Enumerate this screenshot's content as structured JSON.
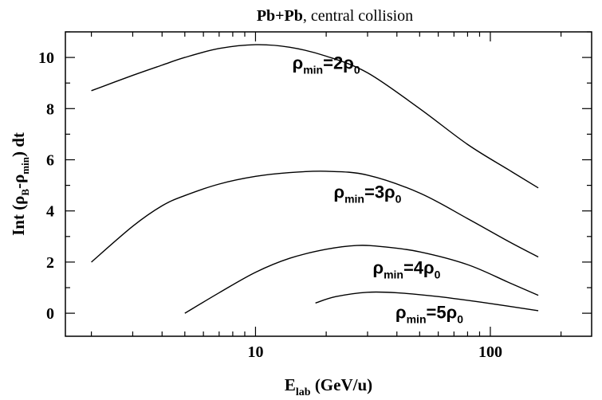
{
  "chart_data": {
    "type": "line",
    "title_bold": "Pb+Pb",
    "title_rest": ", central collision",
    "xlabel": {
      "main": "E",
      "sub": "lab",
      "rest": " (GeV/u)"
    },
    "ylabel": {
      "p1": "Int (ρ",
      "s1": "B",
      "p2": "-ρ",
      "s2": "min",
      "p3": ") dt"
    },
    "x_scale": "log",
    "xlim": [
      1.55,
      270
    ],
    "ylim": [
      -0.9,
      11.0
    ],
    "x_ticks": [
      {
        "value": 10,
        "label": "10"
      },
      {
        "value": 100,
        "label": "100"
      }
    ],
    "y_ticks": [
      {
        "value": 0,
        "label": "0"
      },
      {
        "value": 2,
        "label": "2"
      },
      {
        "value": 4,
        "label": "4"
      },
      {
        "value": 6,
        "label": "6"
      },
      {
        "value": 8,
        "label": "8"
      },
      {
        "value": 10,
        "label": "10"
      }
    ],
    "grid": false,
    "series": [
      {
        "label": {
          "rho": "ρ",
          "sub": "min",
          "eq": "=2ρ",
          "sub0": "0"
        },
        "label_pos": [
          20,
          9.55
        ],
        "x": [
          2,
          3,
          4,
          5,
          7,
          10,
          14,
          20,
          30,
          50,
          80,
          120,
          160
        ],
        "y": [
          8.7,
          9.3,
          9.7,
          10.0,
          10.35,
          10.5,
          10.4,
          10.05,
          9.4,
          8.0,
          6.6,
          5.6,
          4.9
        ]
      },
      {
        "label": {
          "rho": "ρ",
          "sub": "min",
          "eq": "=3ρ",
          "sub0": "0"
        },
        "label_pos": [
          30,
          4.5
        ],
        "x": [
          2,
          3,
          4,
          5,
          7,
          10,
          14,
          20,
          30,
          50,
          80,
          120,
          160
        ],
        "y": [
          2.0,
          3.4,
          4.2,
          4.6,
          5.05,
          5.35,
          5.5,
          5.55,
          5.4,
          4.7,
          3.7,
          2.8,
          2.2
        ]
      },
      {
        "label": {
          "rho": "ρ",
          "sub": "min",
          "eq": "=4ρ",
          "sub0": "0"
        },
        "label_pos": [
          44,
          1.55
        ],
        "x": [
          5,
          7,
          10,
          14,
          20,
          27,
          35,
          50,
          80,
          120,
          160
        ],
        "y": [
          0.0,
          0.8,
          1.6,
          2.15,
          2.5,
          2.65,
          2.6,
          2.4,
          1.9,
          1.2,
          0.7
        ]
      },
      {
        "label": {
          "rho": "ρ",
          "sub": "min",
          "eq": "=5ρ",
          "sub0": "0"
        },
        "label_pos": [
          55,
          -0.2
        ],
        "x": [
          18,
          22,
          30,
          40,
          60,
          100,
          160
        ],
        "y": [
          0.4,
          0.65,
          0.82,
          0.8,
          0.65,
          0.38,
          0.1
        ]
      }
    ]
  }
}
